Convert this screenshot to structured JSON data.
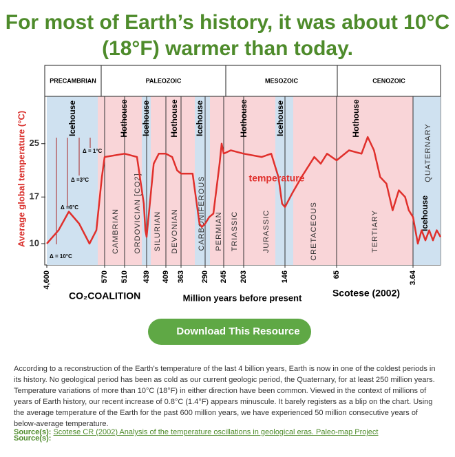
{
  "header": {
    "title": "For most of Earth’s history, it was about 10°C (18°F) warmer than today."
  },
  "chart_data": {
    "type": "line",
    "eras": [
      "PRECAMBRIAN",
      "PALEOZOIC",
      "MESOZOIC",
      "CENOZOIC"
    ],
    "y_label": "Average global temperature (°C)",
    "x_label": "Million years before present",
    "credit": "Scotese (2002)",
    "logo": "CO₂COALITION",
    "line_label": "temperature",
    "climate_labels": [
      "Icehouse",
      "Hothouse",
      "Icehouse",
      "Hothouse",
      "Icehouse",
      "Hothouse",
      "Icehouse",
      "Hothouse",
      "Icehouse"
    ],
    "periods": [
      "CAMBRIAN",
      "ORDOVICIAN [CO2]",
      "SILURIAN",
      "DEVONIAN",
      "CARBONIFEROUS",
      "PERMIAN",
      "TRIASSIC",
      "JURASSIC",
      "CRETACEOUS",
      "TERTIARY",
      "QUATERNARY"
    ],
    "delta_labels": [
      "Δ = 1°C",
      "Δ =3°C",
      "Δ =6°C",
      "Δ = 10°C"
    ],
    "ylim": [
      6.8,
      32.1
    ],
    "yticks": [
      10,
      17,
      25
    ],
    "xlim": [
      4600,
      0
    ],
    "xticks": [
      {
        "value": 4600,
        "label": "4,600"
      },
      570,
      510,
      439,
      409,
      363,
      290,
      245,
      203,
      146,
      65,
      3.64
    ],
    "series": [
      {
        "name": "temperature",
        "color": "#e0302c",
        "x": [
          4600,
          3784,
          3065,
          2345,
          1625,
          1146,
          762,
          570,
          510,
          470,
          448,
          443,
          439,
          428,
          420,
          409,
          390,
          375,
          363,
          328,
          307,
          300,
          290,
          280,
          270,
          255,
          250,
          245,
          230,
          203,
          178,
          165,
          155,
          150,
          146,
          135,
          120,
          100,
          90,
          80,
          65,
          55,
          45,
          40,
          35,
          30,
          25,
          20,
          15,
          10,
          7,
          3.64,
          3,
          2.5,
          2,
          1.5,
          1,
          0.5,
          0
        ],
        "values": [
          10,
          12,
          14.8,
          13,
          10,
          12,
          20,
          23,
          23.5,
          23,
          16,
          12,
          11,
          22,
          23.5,
          23.5,
          23,
          21,
          20.5,
          20.5,
          13,
          12.5,
          13,
          14,
          14.5,
          22,
          25,
          23.5,
          24,
          23.5,
          23,
          23.5,
          20,
          16,
          15.5,
          17.5,
          20,
          23,
          22,
          23.5,
          22.5,
          24,
          23.5,
          26,
          24,
          20,
          19,
          15,
          18,
          17,
          15,
          14,
          10,
          12,
          10.5,
          12,
          10.5,
          12,
          11
        ]
      }
    ]
  },
  "button": {
    "label": "Download This Resource"
  },
  "body": {
    "paragraph": "According to a reconstruction of the Earth’s temperature of the last 4 billion years, Earth is now in one of the coldest periods in its history. No geological period has been as cold as our current geologic period, the Quaternary, for at least 250 million years. Temperature variations of more than 10°C (18°F) in either direction have been common. Viewed in the context of millions of years of Earth history, our recent increase of 0.8°C (1.4°F) appears minuscule. It barely registers as a blip on the chart. Using the average temperature of the Earth for the past 600 million years, we have experienced 50 million consecutive years of below-average temperature.",
    "source_label": "Source(s):",
    "source_link": "Scotese CR (2002) Analysis of the temperature oscillations in geological eras. Paleo-map Project",
    "source_label_2": "Source(s):"
  }
}
